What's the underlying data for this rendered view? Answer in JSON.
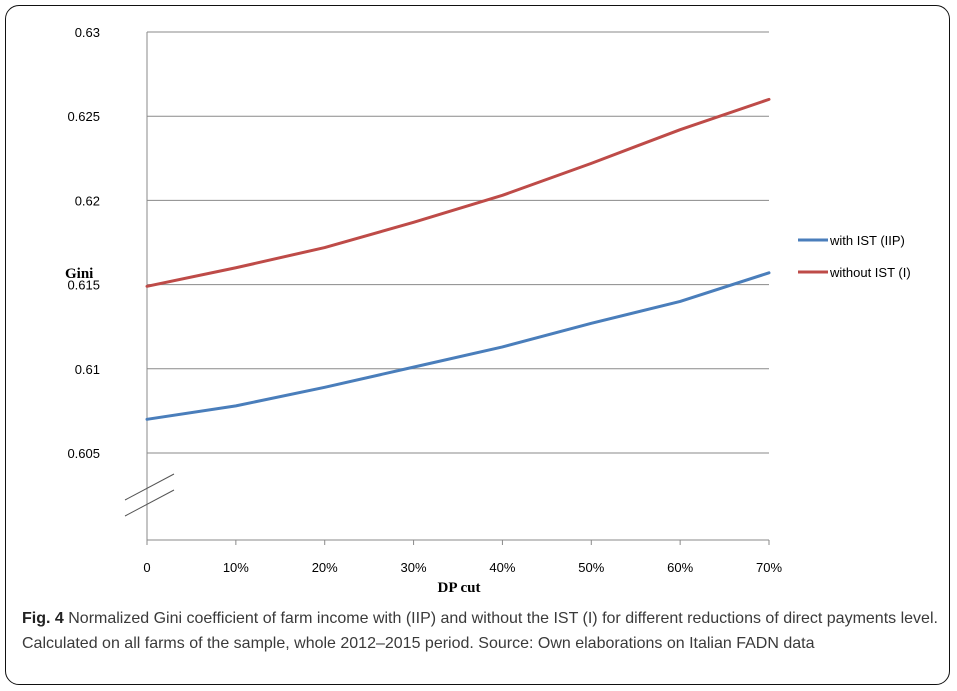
{
  "chart_data": {
    "type": "line",
    "xlabel": "DP cut",
    "ylabel": "Gini",
    "categories": [
      "0",
      "10%",
      "20%",
      "30%",
      "40%",
      "50%",
      "60%",
      "70%"
    ],
    "y_ticks": [
      "0.63",
      "0.625",
      "0.62",
      "0.615",
      "0.61",
      "0.605"
    ],
    "ylim": [
      0.6,
      0.63
    ],
    "axis_break": true,
    "grid": true,
    "legend_position": "right",
    "series": [
      {
        "name": "with IST (IIP)",
        "color": "#4a7ebb",
        "values": [
          0.607,
          0.6078,
          0.6089,
          0.6101,
          0.6113,
          0.6127,
          0.614,
          0.6157
        ]
      },
      {
        "name": "without IST (I)",
        "color": "#be4b48",
        "values": [
          0.6149,
          0.616,
          0.6172,
          0.6187,
          0.6203,
          0.6222,
          0.6242,
          0.626
        ]
      }
    ]
  },
  "caption": {
    "label": "Fig. 4",
    "text": "Normalized Gini coefficient of farm income with (IIP) and without the IST (I) for different reductions of direct payments level. Calculated on all farms of the sample, whole 2012–2015 period. Source: Own elaborations on Italian FADN data"
  }
}
